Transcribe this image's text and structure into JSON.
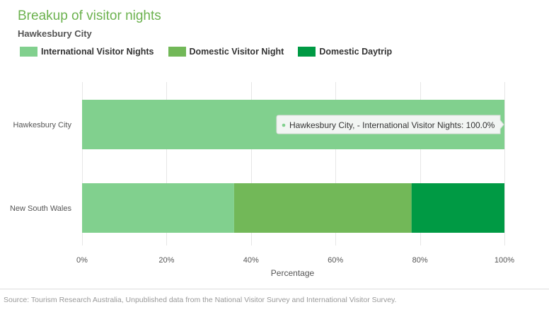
{
  "chart_data": {
    "type": "bar",
    "orientation": "horizontal",
    "stacked": "percent",
    "title": "Breakup of visitor nights",
    "subtitle": "Hawkesbury City",
    "xlabel": "Percentage",
    "ylabel": "",
    "xlim": [
      0,
      100
    ],
    "x_ticks": [
      "0%",
      "20%",
      "40%",
      "60%",
      "80%",
      "100%"
    ],
    "categories": [
      "Hawkesbury City",
      "New South Wales"
    ],
    "series": [
      {
        "name": "International Visitor Nights",
        "color": "#81d08e",
        "values": [
          100.0,
          36.0
        ]
      },
      {
        "name": "Domestic Visitor Night",
        "color": "#72b858",
        "values": [
          0.0,
          42.0
        ]
      },
      {
        "name": "Domestic Daytrip",
        "color": "#009a44",
        "values": [
          0.0,
          22.0
        ]
      }
    ],
    "grid": true,
    "legend_position": "top-left",
    "tooltip": {
      "text": "Hawkesbury City, - International Visitor Nights: 100.0%",
      "category": "Hawkesbury City",
      "series": "International Visitor Nights"
    }
  },
  "source_note": "Source: Tourism Research Australia, Unpublished data from the National Visitor Survey and International Visitor Survey."
}
